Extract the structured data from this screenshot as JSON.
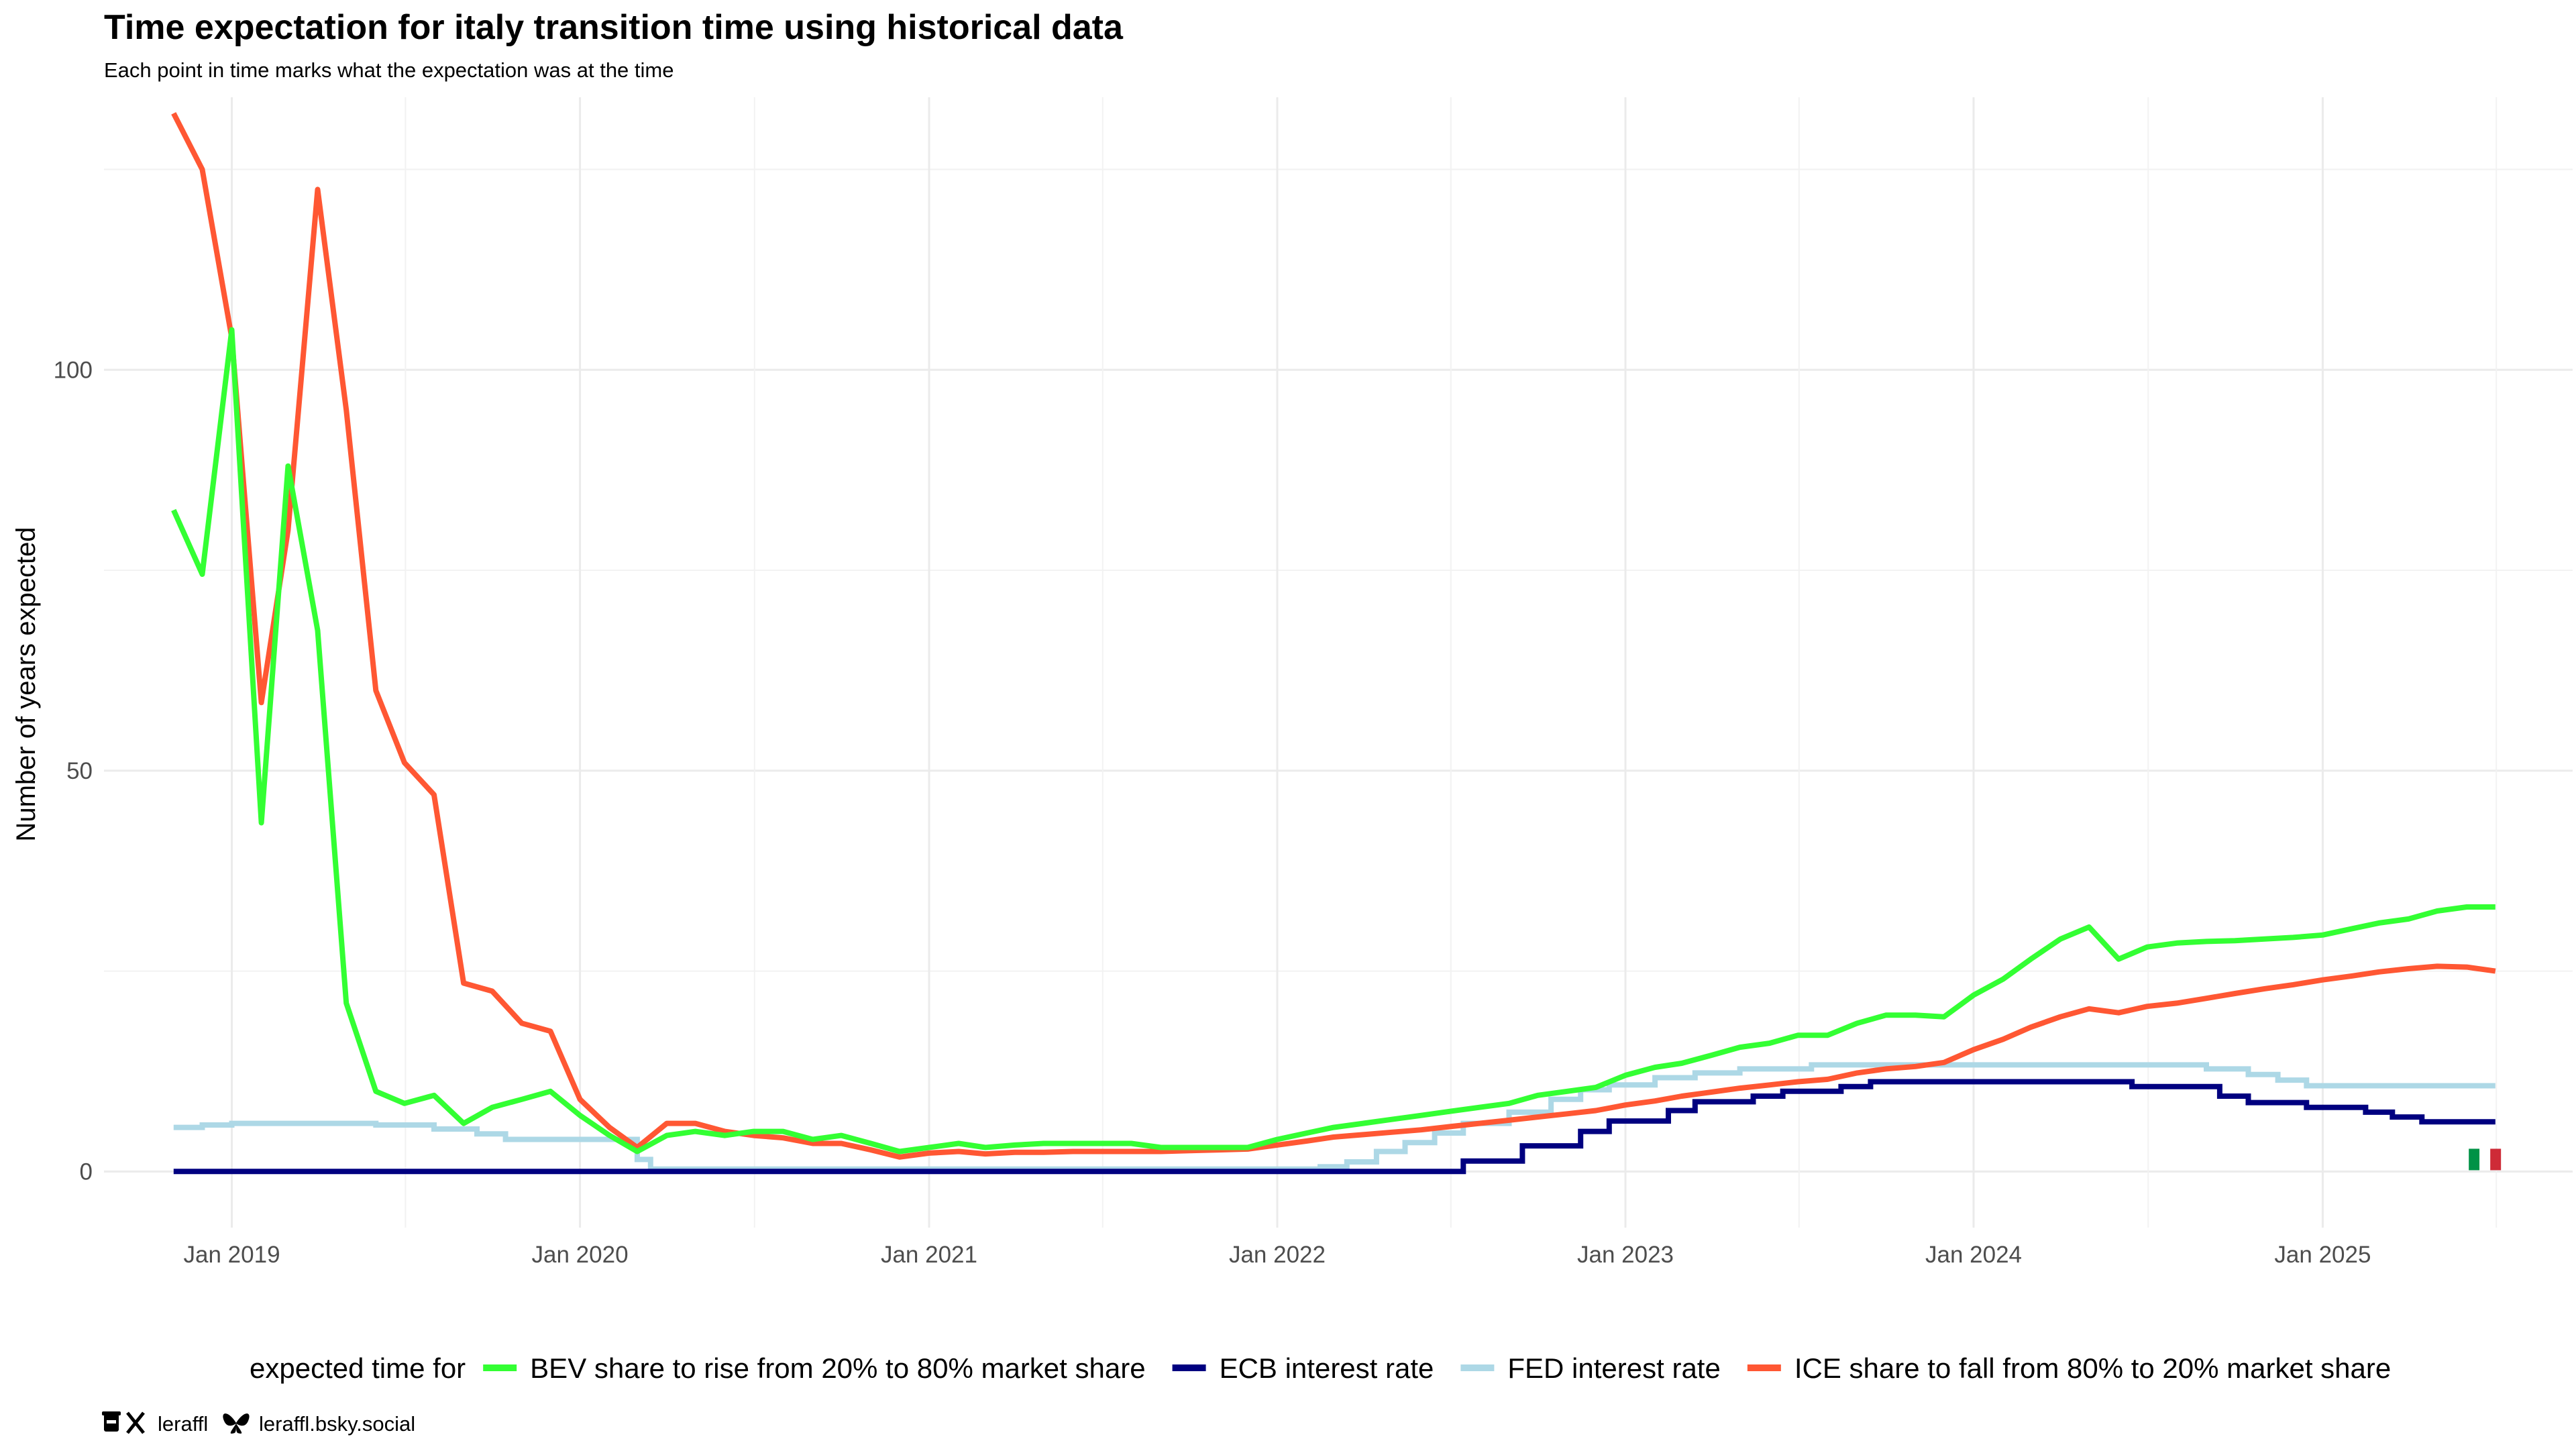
{
  "chart_data": {
    "type": "line",
    "title": "Time expectation for italy transition time using historical data",
    "subtitle": "Each point in time marks what the expectation was at the time",
    "xlabel": "",
    "ylabel": "Number of years expected",
    "xlim": [
      "2018-08-20",
      "2025-09-20"
    ],
    "ylim": [
      -7,
      134
    ],
    "x_ticks": [
      {
        "date": "2019-01-01",
        "label": "Jan 2019"
      },
      {
        "date": "2020-01-01",
        "label": "Jan 2020"
      },
      {
        "date": "2021-01-01",
        "label": "Jan 2021"
      },
      {
        "date": "2022-01-01",
        "label": "Jan 2022"
      },
      {
        "date": "2023-01-01",
        "label": "Jan 2023"
      },
      {
        "date": "2024-01-01",
        "label": "Jan 2024"
      },
      {
        "date": "2025-01-01",
        "label": "Jan 2025"
      }
    ],
    "y_ticks": [
      0,
      50,
      100
    ],
    "grid": true,
    "legend": {
      "position": "bottom",
      "title": "expected time for"
    },
    "series": [
      {
        "name": "BEV share to rise from 20% to 80% market share",
        "color": "#33ff33",
        "step": false,
        "points": [
          [
            "2018-11-01",
            82.5
          ],
          [
            "2018-12-01",
            74.5
          ],
          [
            "2019-01-01",
            105
          ],
          [
            "2019-02-01",
            43.5
          ],
          [
            "2019-03-01",
            88
          ],
          [
            "2019-04-01",
            67.5
          ],
          [
            "2019-05-01",
            21
          ],
          [
            "2019-06-01",
            10
          ],
          [
            "2019-07-01",
            8.5
          ],
          [
            "2019-08-01",
            9.5
          ],
          [
            "2019-09-01",
            6
          ],
          [
            "2019-10-01",
            8
          ],
          [
            "2019-11-01",
            9
          ],
          [
            "2019-12-01",
            10
          ],
          [
            "2020-01-01",
            7
          ],
          [
            "2020-02-01",
            4.5
          ],
          [
            "2020-03-01",
            2.5
          ],
          [
            "2020-04-01",
            4.5
          ],
          [
            "2020-05-01",
            5
          ],
          [
            "2020-06-01",
            4.5
          ],
          [
            "2020-07-01",
            5
          ],
          [
            "2020-08-01",
            5
          ],
          [
            "2020-09-01",
            4
          ],
          [
            "2020-10-01",
            4.5
          ],
          [
            "2020-11-01",
            3.5
          ],
          [
            "2020-12-01",
            2.5
          ],
          [
            "2021-01-01",
            3
          ],
          [
            "2021-02-01",
            3.5
          ],
          [
            "2021-03-01",
            3
          ],
          [
            "2021-04-01",
            3.3
          ],
          [
            "2021-05-01",
            3.5
          ],
          [
            "2021-06-01",
            3.5
          ],
          [
            "2021-07-01",
            3.5
          ],
          [
            "2021-08-01",
            3.5
          ],
          [
            "2021-09-01",
            3
          ],
          [
            "2021-10-01",
            3
          ],
          [
            "2021-11-01",
            3
          ],
          [
            "2021-12-01",
            3
          ],
          [
            "2022-01-01",
            4
          ],
          [
            "2022-02-01",
            4.8
          ],
          [
            "2022-03-01",
            5.5
          ],
          [
            "2022-04-01",
            6
          ],
          [
            "2022-05-01",
            6.5
          ],
          [
            "2022-06-01",
            7
          ],
          [
            "2022-07-01",
            7.5
          ],
          [
            "2022-08-01",
            8
          ],
          [
            "2022-09-01",
            8.5
          ],
          [
            "2022-10-01",
            9.5
          ],
          [
            "2022-11-01",
            10
          ],
          [
            "2022-12-01",
            10.5
          ],
          [
            "2023-01-01",
            12
          ],
          [
            "2023-02-01",
            13
          ],
          [
            "2023-03-01",
            13.5
          ],
          [
            "2023-04-01",
            14.5
          ],
          [
            "2023-05-01",
            15.5
          ],
          [
            "2023-06-01",
            16
          ],
          [
            "2023-07-01",
            17
          ],
          [
            "2023-08-01",
            17
          ],
          [
            "2023-09-01",
            18.5
          ],
          [
            "2023-10-01",
            19.5
          ],
          [
            "2023-11-01",
            19.5
          ],
          [
            "2023-12-01",
            19.3
          ],
          [
            "2024-01-01",
            22
          ],
          [
            "2024-02-01",
            24
          ],
          [
            "2024-03-01",
            26.5
          ],
          [
            "2024-04-01",
            29
          ],
          [
            "2024-05-01",
            30.5
          ],
          [
            "2024-06-01",
            26.5
          ],
          [
            "2024-07-01",
            28
          ],
          [
            "2024-08-01",
            28.5
          ],
          [
            "2024-09-01",
            28.7
          ],
          [
            "2024-10-01",
            28.8
          ],
          [
            "2024-11-01",
            29
          ],
          [
            "2024-12-01",
            29.2
          ],
          [
            "2025-01-01",
            29.5
          ],
          [
            "2025-02-01",
            30.3
          ],
          [
            "2025-03-01",
            31
          ],
          [
            "2025-04-01",
            31.5
          ],
          [
            "2025-05-01",
            32.5
          ],
          [
            "2025-06-01",
            33
          ],
          [
            "2025-07-01",
            33
          ]
        ]
      },
      {
        "name": "ECB interest rate",
        "color": "#000080",
        "step": true,
        "points": [
          [
            "2018-11-01",
            0
          ],
          [
            "2022-07-15",
            0
          ],
          [
            "2022-07-15",
            1.3
          ],
          [
            "2022-09-15",
            1.3
          ],
          [
            "2022-09-15",
            3.2
          ],
          [
            "2022-11-15",
            3.2
          ],
          [
            "2022-11-15",
            5
          ],
          [
            "2022-12-15",
            5
          ],
          [
            "2022-12-15",
            6.3
          ],
          [
            "2023-02-15",
            6.3
          ],
          [
            "2023-02-15",
            7.6
          ],
          [
            "2023-03-15",
            7.6
          ],
          [
            "2023-03-15",
            8.7
          ],
          [
            "2023-05-15",
            8.7
          ],
          [
            "2023-05-15",
            9.4
          ],
          [
            "2023-06-15",
            9.4
          ],
          [
            "2023-06-15",
            10
          ],
          [
            "2023-08-15",
            10
          ],
          [
            "2023-08-15",
            10.6
          ],
          [
            "2023-09-15",
            10.6
          ],
          [
            "2023-09-15",
            11.2
          ],
          [
            "2024-06-15",
            11.2
          ],
          [
            "2024-06-15",
            10.6
          ],
          [
            "2024-09-15",
            10.6
          ],
          [
            "2024-09-15",
            9.4
          ],
          [
            "2024-10-15",
            9.4
          ],
          [
            "2024-10-15",
            8.6
          ],
          [
            "2024-12-15",
            8.6
          ],
          [
            "2024-12-15",
            8
          ],
          [
            "2025-02-15",
            8
          ],
          [
            "2025-02-15",
            7.4
          ],
          [
            "2025-03-15",
            7.4
          ],
          [
            "2025-03-15",
            6.8
          ],
          [
            "2025-04-15",
            6.8
          ],
          [
            "2025-04-15",
            6.2
          ],
          [
            "2025-07-01",
            6.2
          ]
        ]
      },
      {
        "name": "FED interest rate",
        "color": "#add8e6",
        "step": true,
        "points": [
          [
            "2018-11-01",
            5.5
          ],
          [
            "2018-12-01",
            5.5
          ],
          [
            "2018-12-01",
            5.8
          ],
          [
            "2019-01-01",
            5.8
          ],
          [
            "2019-01-01",
            6
          ],
          [
            "2019-06-01",
            6
          ],
          [
            "2019-06-01",
            5.8
          ],
          [
            "2019-08-01",
            5.8
          ],
          [
            "2019-08-01",
            5.3
          ],
          [
            "2019-09-15",
            5.3
          ],
          [
            "2019-09-15",
            4.7
          ],
          [
            "2019-10-15",
            4.7
          ],
          [
            "2019-10-15",
            4
          ],
          [
            "2020-03-01",
            4
          ],
          [
            "2020-03-01",
            1.5
          ],
          [
            "2020-03-15",
            1.5
          ],
          [
            "2020-03-15",
            0.3
          ],
          [
            "2022-02-15",
            0.3
          ],
          [
            "2022-02-15",
            0.6
          ],
          [
            "2022-03-15",
            0.6
          ],
          [
            "2022-03-15",
            1.2
          ],
          [
            "2022-04-15",
            1.2
          ],
          [
            "2022-04-15",
            2.5
          ],
          [
            "2022-05-15",
            2.5
          ],
          [
            "2022-05-15",
            3.6
          ],
          [
            "2022-06-15",
            3.6
          ],
          [
            "2022-06-15",
            4.8
          ],
          [
            "2022-07-15",
            4.8
          ],
          [
            "2022-07-15",
            6
          ],
          [
            "2022-09-01",
            6
          ],
          [
            "2022-09-01",
            7.4
          ],
          [
            "2022-10-15",
            7.4
          ],
          [
            "2022-10-15",
            9
          ],
          [
            "2022-11-15",
            9
          ],
          [
            "2022-11-15",
            10.2
          ],
          [
            "2022-12-15",
            10.2
          ],
          [
            "2022-12-15",
            10.8
          ],
          [
            "2023-02-01",
            10.8
          ],
          [
            "2023-02-01",
            11.7
          ],
          [
            "2023-03-15",
            11.7
          ],
          [
            "2023-03-15",
            12.3
          ],
          [
            "2023-05-01",
            12.3
          ],
          [
            "2023-05-01",
            12.8
          ],
          [
            "2023-07-15",
            12.8
          ],
          [
            "2023-07-15",
            13.3
          ],
          [
            "2024-09-01",
            13.3
          ],
          [
            "2024-09-01",
            12.8
          ],
          [
            "2024-10-15",
            12.8
          ],
          [
            "2024-10-15",
            12.1
          ],
          [
            "2024-11-15",
            12.1
          ],
          [
            "2024-11-15",
            11.4
          ],
          [
            "2024-12-15",
            11.4
          ],
          [
            "2024-12-15",
            10.7
          ],
          [
            "2025-07-01",
            10.7
          ]
        ]
      },
      {
        "name": "ICE share to fall from 80% to 20% market share",
        "color": "#ff5733",
        "step": false,
        "points": [
          [
            "2018-11-01",
            132
          ],
          [
            "2018-12-01",
            125
          ],
          [
            "2019-01-01",
            104
          ],
          [
            "2019-02-01",
            58.5
          ],
          [
            "2019-03-01",
            80
          ],
          [
            "2019-04-01",
            122.5
          ],
          [
            "2019-05-01",
            95
          ],
          [
            "2019-06-01",
            60
          ],
          [
            "2019-07-01",
            51
          ],
          [
            "2019-08-01",
            47
          ],
          [
            "2019-09-01",
            23.5
          ],
          [
            "2019-10-01",
            22.5
          ],
          [
            "2019-11-01",
            18.5
          ],
          [
            "2019-12-01",
            17.5
          ],
          [
            "2020-01-01",
            9
          ],
          [
            "2020-02-01",
            5.5
          ],
          [
            "2020-03-01",
            3
          ],
          [
            "2020-04-01",
            6
          ],
          [
            "2020-05-01",
            6
          ],
          [
            "2020-06-01",
            5
          ],
          [
            "2020-07-01",
            4.5
          ],
          [
            "2020-08-01",
            4.2
          ],
          [
            "2020-09-01",
            3.5
          ],
          [
            "2020-10-01",
            3.5
          ],
          [
            "2020-11-01",
            2.7
          ],
          [
            "2020-12-01",
            1.8
          ],
          [
            "2021-01-01",
            2.3
          ],
          [
            "2021-02-01",
            2.5
          ],
          [
            "2021-03-01",
            2.2
          ],
          [
            "2021-04-01",
            2.4
          ],
          [
            "2021-05-01",
            2.4
          ],
          [
            "2021-06-01",
            2.5
          ],
          [
            "2021-07-01",
            2.5
          ],
          [
            "2021-08-01",
            2.5
          ],
          [
            "2021-09-01",
            2.5
          ],
          [
            "2021-10-01",
            2.6
          ],
          [
            "2021-11-01",
            2.7
          ],
          [
            "2021-12-01",
            2.8
          ],
          [
            "2022-01-01",
            3.3
          ],
          [
            "2022-02-01",
            3.8
          ],
          [
            "2022-03-01",
            4.3
          ],
          [
            "2022-04-01",
            4.6
          ],
          [
            "2022-05-01",
            4.9
          ],
          [
            "2022-06-01",
            5.2
          ],
          [
            "2022-07-01",
            5.6
          ],
          [
            "2022-08-01",
            6
          ],
          [
            "2022-09-01",
            6.4
          ],
          [
            "2022-10-01",
            6.8
          ],
          [
            "2022-11-01",
            7.2
          ],
          [
            "2022-12-01",
            7.6
          ],
          [
            "2023-01-01",
            8.3
          ],
          [
            "2023-02-01",
            8.8
          ],
          [
            "2023-03-01",
            9.4
          ],
          [
            "2023-04-01",
            9.9
          ],
          [
            "2023-05-01",
            10.4
          ],
          [
            "2023-06-01",
            10.8
          ],
          [
            "2023-07-01",
            11.2
          ],
          [
            "2023-08-01",
            11.5
          ],
          [
            "2023-09-01",
            12.3
          ],
          [
            "2023-10-01",
            12.8
          ],
          [
            "2023-11-01",
            13.1
          ],
          [
            "2023-12-01",
            13.6
          ],
          [
            "2024-01-01",
            15.2
          ],
          [
            "2024-02-01",
            16.5
          ],
          [
            "2024-03-01",
            18
          ],
          [
            "2024-04-01",
            19.3
          ],
          [
            "2024-05-01",
            20.3
          ],
          [
            "2024-06-01",
            19.8
          ],
          [
            "2024-07-01",
            20.6
          ],
          [
            "2024-08-01",
            21
          ],
          [
            "2024-09-01",
            21.6
          ],
          [
            "2024-10-01",
            22.2
          ],
          [
            "2024-11-01",
            22.8
          ],
          [
            "2024-12-01",
            23.3
          ],
          [
            "2025-01-01",
            23.9
          ],
          [
            "2025-02-01",
            24.4
          ],
          [
            "2025-03-01",
            24.9
          ],
          [
            "2025-04-01",
            25.3
          ],
          [
            "2025-05-01",
            25.6
          ],
          [
            "2025-06-01",
            25.5
          ],
          [
            "2025-07-01",
            25
          ]
        ]
      }
    ],
    "flag": {
      "name": "italy-flag-icon",
      "colors": [
        "#009246",
        "#ffffff",
        "#ce2b37"
      ],
      "date": "2025-06-20",
      "value": 1.5
    }
  },
  "credits": {
    "handle_x": "leraffl",
    "handle_bsky": "leraffl.bsky.social",
    "icons": [
      "coffee-icon",
      "x-logo-icon",
      "butterfly-icon"
    ]
  }
}
